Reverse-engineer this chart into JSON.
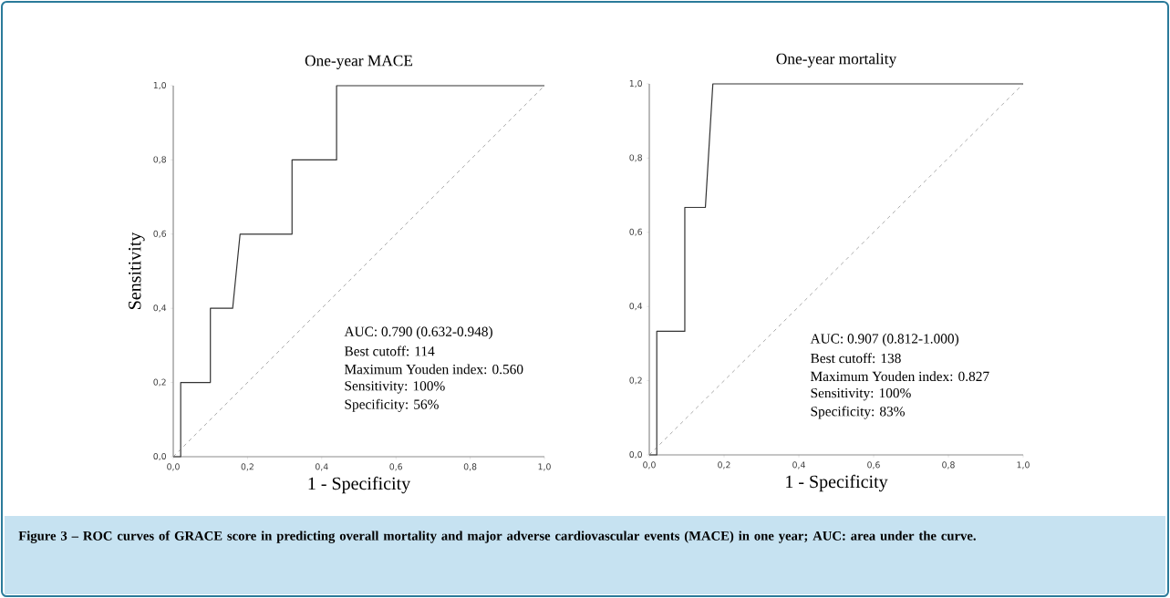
{
  "chart_data": [
    {
      "type": "line",
      "title": "One-year MACE",
      "xlabel": "1 - Specificity",
      "ylabel": "Sensitivity",
      "xlim": [
        0,
        1
      ],
      "ylim": [
        0,
        1
      ],
      "xticks": [
        {
          "value": 0,
          "label": "0,0"
        },
        {
          "value": 0.2,
          "label": "0,2"
        },
        {
          "value": 0.4,
          "label": "0,4"
        },
        {
          "value": 0.6,
          "label": "0,6"
        },
        {
          "value": 0.8,
          "label": "0,8"
        },
        {
          "value": 1,
          "label": "1,0"
        }
      ],
      "yticks": [
        {
          "value": 0,
          "label": "0,0"
        },
        {
          "value": 0.2,
          "label": "0,2"
        },
        {
          "value": 0.4,
          "label": "0,4"
        },
        {
          "value": 0.6,
          "label": "0,6"
        },
        {
          "value": 0.8,
          "label": "0,8"
        },
        {
          "value": 1,
          "label": "1,0"
        }
      ],
      "series": [
        {
          "color": "#333333",
          "line_style": "solid",
          "x": [
            0,
            0.02,
            0.02,
            0.1,
            0.1,
            0.16,
            0.18,
            0.32,
            0.32,
            0.44,
            0.44,
            1
          ],
          "values": [
            0,
            0,
            0.2,
            0.2,
            0.4,
            0.4,
            0.6,
            0.6,
            0.8,
            0.8,
            1,
            1
          ]
        },
        {
          "color": "#808080",
          "line_style": "dashed",
          "x": [
            0,
            1
          ],
          "values": [
            0,
            1
          ]
        }
      ],
      "annotations": [
        "AUC: 0.790 (0.632-0.948)",
        "Best cutoff: 114",
        "Maximum Youden index: 0.560",
        "Sensitivity: 100%",
        "Specificity: 56%"
      ]
    },
    {
      "type": "line",
      "title": "One-year mortality",
      "xlabel": "1 - Specificity",
      "xlim": [
        0,
        1
      ],
      "ylim": [
        0,
        1
      ],
      "xticks": [
        {
          "value": 0,
          "label": "0,0"
        },
        {
          "value": 0.2,
          "label": "0,2"
        },
        {
          "value": 0.4,
          "label": "0,4"
        },
        {
          "value": 0.6,
          "label": "0,6"
        },
        {
          "value": 0.8,
          "label": "0,8"
        },
        {
          "value": 1,
          "label": "1,0"
        }
      ],
      "yticks": [
        {
          "value": 0,
          "label": "0,0"
        },
        {
          "value": 0.2,
          "label": "0,2"
        },
        {
          "value": 0.4,
          "label": "0,4"
        },
        {
          "value": 0.6,
          "label": "0,6"
        },
        {
          "value": 0.8,
          "label": "0,8"
        },
        {
          "value": 1,
          "label": "1,0"
        }
      ],
      "series": [
        {
          "color": "#333333",
          "line_style": "solid",
          "x": [
            0,
            0.02,
            0.02,
            0.095,
            0.095,
            0.15,
            0.17,
            1
          ],
          "values": [
            0,
            0,
            0.333,
            0.333,
            0.667,
            0.667,
            1,
            1
          ]
        },
        {
          "color": "#808080",
          "line_style": "dashed",
          "x": [
            0,
            1
          ],
          "values": [
            0,
            1
          ]
        }
      ],
      "annotations": [
        "AUC: 0.907 (0.812-1.000)",
        "Best cutoff: 138",
        "Maximum Youden index: 0.827",
        "Sensitivity: 100%",
        "Specificity: 83%"
      ]
    },
    {
      "type": "other",
      "annotations": [
        "Figure 3 – ROC curves of GRACE score in predicting overall mortality and major adverse cardiovascular events (MACE) in one year; AUC: area under the curve."
      ]
    }
  ]
}
